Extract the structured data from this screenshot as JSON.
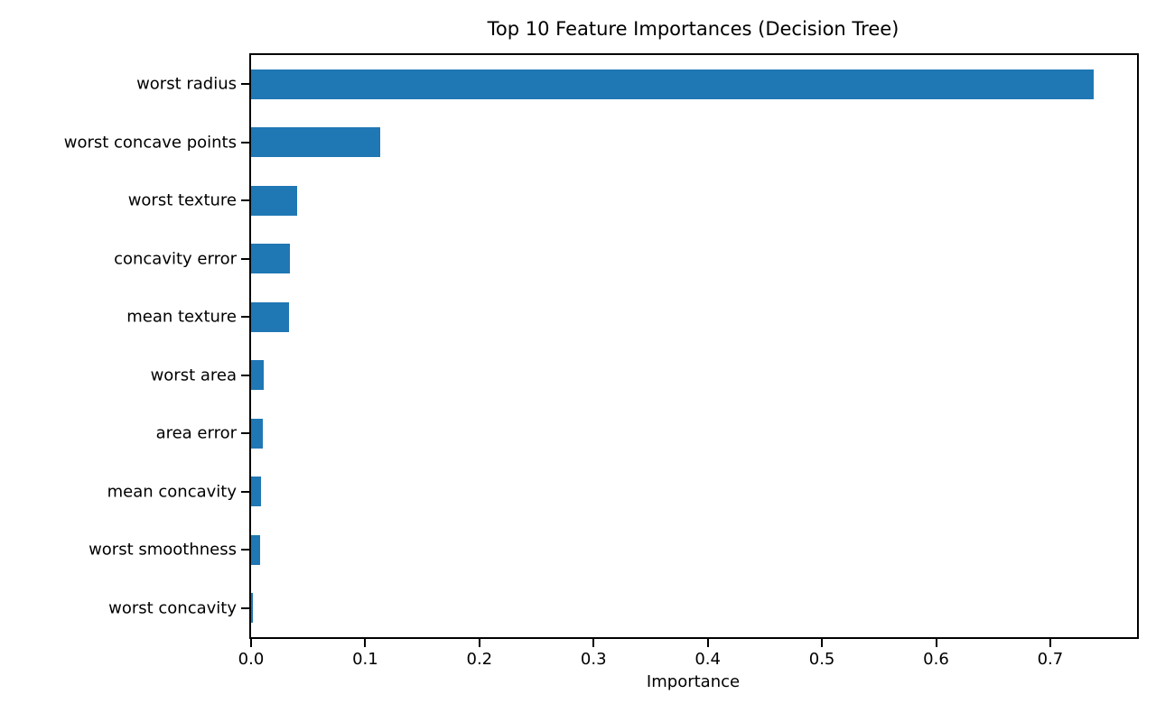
{
  "chart_data": {
    "type": "bar",
    "orientation": "horizontal",
    "title": "Top 10 Feature Importances (Decision Tree)",
    "xlabel": "Importance",
    "ylabel": "",
    "categories": [
      "worst radius",
      "worst concave points",
      "worst texture",
      "concavity error",
      "mean texture",
      "worst area",
      "area error",
      "mean concavity",
      "worst smoothness",
      "worst concavity"
    ],
    "values": [
      0.738,
      0.113,
      0.04,
      0.034,
      0.033,
      0.011,
      0.01,
      0.009,
      0.008,
      0.0013
    ],
    "x_ticks": [
      0.0,
      0.1,
      0.2,
      0.3,
      0.4,
      0.5,
      0.6,
      0.7
    ],
    "xlim": [
      0,
      0.776
    ],
    "grid": false,
    "legend": null,
    "bar_color": "#1f77b4",
    "axis_color": "#000000",
    "background_color": "#ffffff"
  }
}
